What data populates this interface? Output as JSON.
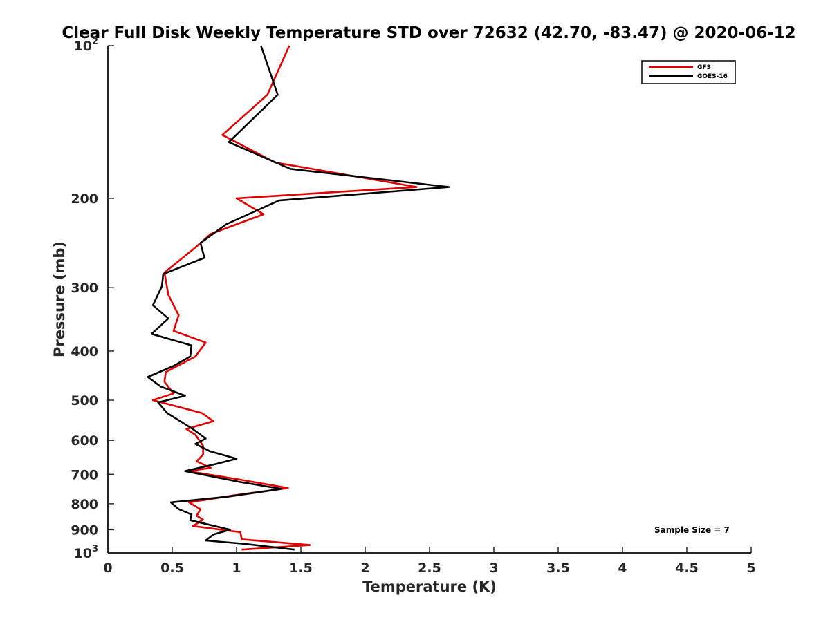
{
  "chart_data": {
    "type": "line",
    "title": "Clear Full Disk Weekly Temperature STD over 72632 (42.70, -83.47) @ 2020-06-12",
    "xlabel": "Temperature (K)",
    "ylabel": "Pressure (mb)",
    "xlim": [
      0,
      5
    ],
    "ylim": [
      100,
      1000
    ],
    "y_scale": "log",
    "y_reversed": true,
    "grid": false,
    "legend_position": "top-right",
    "x_ticks": [
      "0",
      "0.5",
      "1",
      "1.5",
      "2",
      "2.5",
      "3",
      "3.5",
      "4",
      "4.5",
      "5"
    ],
    "y_ticks": [
      {
        "value": 100,
        "base": "10",
        "exp": "2",
        "label": ""
      },
      {
        "value": 200,
        "label": "200"
      },
      {
        "value": 300,
        "label": "300"
      },
      {
        "value": 400,
        "label": "400"
      },
      {
        "value": 500,
        "label": "500"
      },
      {
        "value": 600,
        "label": "600"
      },
      {
        "value": 700,
        "label": "700"
      },
      {
        "value": 800,
        "label": "800"
      },
      {
        "value": 900,
        "label": "900"
      },
      {
        "value": 1000,
        "base": "10",
        "exp": "3",
        "label": ""
      }
    ],
    "annotation": "Sample Size = 7",
    "series": [
      {
        "name": "GFS",
        "color": "#e00000",
        "points": [
          [
            1.41,
            100
          ],
          [
            1.24,
            125
          ],
          [
            0.89,
            150
          ],
          [
            1.3,
            170
          ],
          [
            2.4,
            190
          ],
          [
            1.0,
            200
          ],
          [
            1.21,
            215
          ],
          [
            0.8,
            235
          ],
          [
            0.68,
            250
          ],
          [
            0.44,
            280
          ],
          [
            0.47,
            310
          ],
          [
            0.55,
            340
          ],
          [
            0.51,
            365
          ],
          [
            0.76,
            385
          ],
          [
            0.68,
            410
          ],
          [
            0.45,
            440
          ],
          [
            0.44,
            460
          ],
          [
            0.51,
            485
          ],
          [
            0.35,
            500
          ],
          [
            0.73,
            530
          ],
          [
            0.82,
            550
          ],
          [
            0.61,
            570
          ],
          [
            0.68,
            585
          ],
          [
            0.74,
            615
          ],
          [
            0.74,
            640
          ],
          [
            0.69,
            660
          ],
          [
            0.8,
            680
          ],
          [
            0.62,
            690
          ],
          [
            1.0,
            715
          ],
          [
            1.4,
            745
          ],
          [
            0.98,
            770
          ],
          [
            0.63,
            795
          ],
          [
            0.72,
            820
          ],
          [
            0.69,
            845
          ],
          [
            0.74,
            860
          ],
          [
            0.66,
            885
          ],
          [
            1.03,
            910
          ],
          [
            1.04,
            940
          ],
          [
            1.57,
            965
          ],
          [
            1.04,
            985
          ]
        ]
      },
      {
        "name": "GOES-16",
        "color": "#000000",
        "points": [
          [
            1.19,
            100
          ],
          [
            1.32,
            125
          ],
          [
            0.94,
            155
          ],
          [
            1.42,
            175
          ],
          [
            2.65,
            190
          ],
          [
            1.33,
            202
          ],
          [
            0.92,
            225
          ],
          [
            0.72,
            245
          ],
          [
            0.75,
            262
          ],
          [
            0.43,
            282
          ],
          [
            0.42,
            298
          ],
          [
            0.35,
            325
          ],
          [
            0.47,
            345
          ],
          [
            0.34,
            370
          ],
          [
            0.65,
            390
          ],
          [
            0.64,
            410
          ],
          [
            0.51,
            428
          ],
          [
            0.31,
            450
          ],
          [
            0.41,
            470
          ],
          [
            0.6,
            490
          ],
          [
            0.39,
            505
          ],
          [
            0.46,
            530
          ],
          [
            0.66,
            570
          ],
          [
            0.76,
            595
          ],
          [
            0.68,
            610
          ],
          [
            0.79,
            630
          ],
          [
            1.0,
            652
          ],
          [
            0.84,
            668
          ],
          [
            0.6,
            690
          ],
          [
            1.03,
            725
          ],
          [
            1.35,
            748
          ],
          [
            0.93,
            775
          ],
          [
            0.49,
            795
          ],
          [
            0.55,
            820
          ],
          [
            0.65,
            840
          ],
          [
            0.64,
            862
          ],
          [
            0.95,
            900
          ],
          [
            0.82,
            920
          ],
          [
            0.76,
            945
          ],
          [
            1.07,
            960
          ],
          [
            1.45,
            985
          ]
        ]
      }
    ]
  }
}
